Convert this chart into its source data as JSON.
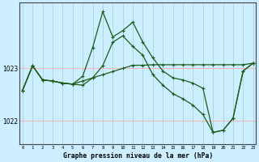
{
  "xlabel": "Graphe pression niveau de la mer (hPa)",
  "background_color": "#cceeff",
  "plot_bg_color": "#cceeff",
  "grid_color_v": "#aad4d4",
  "grid_color_h": "#ffaaaa",
  "line_color": "#1a5c1a",
  "x_ticks": [
    0,
    1,
    2,
    3,
    4,
    5,
    6,
    7,
    8,
    9,
    10,
    11,
    12,
    13,
    14,
    15,
    16,
    17,
    18,
    19,
    20,
    21,
    22,
    23
  ],
  "ylim": [
    1021.55,
    1024.25
  ],
  "yticks": [
    1022,
    1023
  ],
  "xlim": [
    -0.3,
    23.3
  ],
  "series1_x": [
    0,
    1,
    2,
    3,
    4,
    5,
    6,
    7,
    8,
    9,
    10,
    11,
    12,
    13,
    14,
    15,
    16,
    17,
    18,
    19,
    20,
    21,
    22,
    23
  ],
  "series1_y": [
    1022.58,
    1023.05,
    1022.78,
    1022.76,
    1022.72,
    1022.7,
    1022.76,
    1022.82,
    1022.88,
    1022.94,
    1023.0,
    1023.06,
    1023.06,
    1023.07,
    1023.07,
    1023.07,
    1023.07,
    1023.07,
    1023.07,
    1023.07,
    1023.07,
    1023.07,
    1023.07,
    1023.1
  ],
  "series2_x": [
    0,
    1,
    2,
    3,
    4,
    5,
    6,
    7,
    8,
    9,
    10,
    11,
    12,
    13,
    14,
    15,
    16,
    17,
    18,
    19,
    20,
    21,
    22,
    23
  ],
  "series2_y": [
    1022.58,
    1023.05,
    1022.78,
    1022.76,
    1022.72,
    1022.7,
    1022.85,
    1023.4,
    1024.08,
    1023.6,
    1023.72,
    1023.88,
    1023.5,
    1023.2,
    1022.95,
    1022.82,
    1022.78,
    1022.72,
    1022.62,
    1021.78,
    1021.82,
    1022.05,
    1022.95,
    1023.1
  ],
  "series3_x": [
    0,
    1,
    2,
    3,
    4,
    5,
    6,
    7,
    8,
    9,
    10,
    11,
    12,
    13,
    14,
    15,
    16,
    17,
    18,
    19,
    20,
    21,
    22,
    23
  ],
  "series3_y": [
    1022.58,
    1023.05,
    1022.78,
    1022.76,
    1022.72,
    1022.7,
    1022.68,
    1022.82,
    1023.05,
    1023.5,
    1023.62,
    1023.42,
    1023.25,
    1022.88,
    1022.68,
    1022.52,
    1022.42,
    1022.3,
    1022.12,
    1021.78,
    1021.82,
    1022.05,
    1022.95,
    1023.1
  ]
}
